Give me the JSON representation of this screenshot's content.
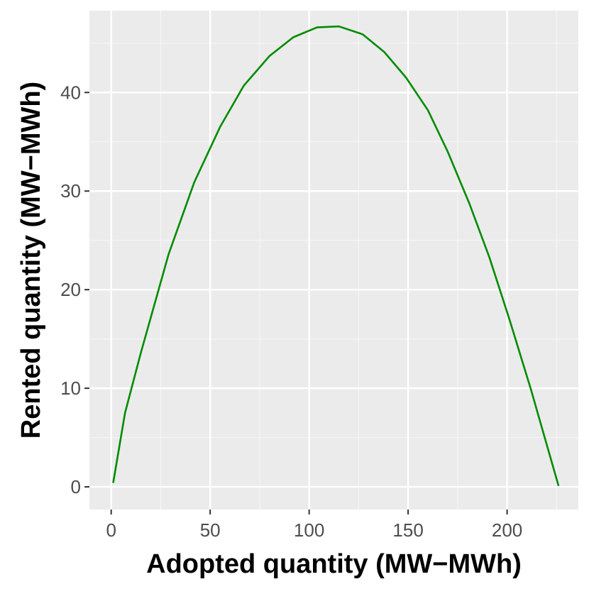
{
  "chart_data": {
    "type": "line",
    "title": "",
    "xlabel": "Adopted quantity (MW−MWh)",
    "ylabel": "Rented quantity (MW−MWh)",
    "xlim": [
      -11,
      236
    ],
    "ylim": [
      -2.3,
      48.3
    ],
    "x_ticks": [
      0,
      50,
      100,
      150,
      200
    ],
    "x_tick_labels": [
      "0",
      "50",
      "100",
      "150",
      "200"
    ],
    "y_ticks": [
      0,
      10,
      20,
      30,
      40
    ],
    "y_tick_labels": [
      "0",
      "10",
      "20",
      "30",
      "40"
    ],
    "grid": true,
    "legend": "none",
    "series": [
      {
        "color": "#008B00",
        "x": [
          1,
          7,
          15,
          29,
          42,
          55,
          67,
          80,
          92,
          104,
          115,
          127,
          138,
          149,
          160,
          170,
          181,
          191,
          201,
          212,
          226
        ],
        "y": [
          0.4,
          7.5,
          13.6,
          23.6,
          30.9,
          36.5,
          40.7,
          43.7,
          45.6,
          46.6,
          46.7,
          45.9,
          44.1,
          41.5,
          38.2,
          34.0,
          28.7,
          23.3,
          17.1,
          9.9,
          0.1
        ]
      }
    ]
  },
  "colors": {
    "panel_background": "#EBEBEB",
    "grid_major": "#FFFFFF",
    "grid_minor": "#F5F5F5",
    "tick_text": "#4D4D4D",
    "tick_mark": "#333333"
  }
}
